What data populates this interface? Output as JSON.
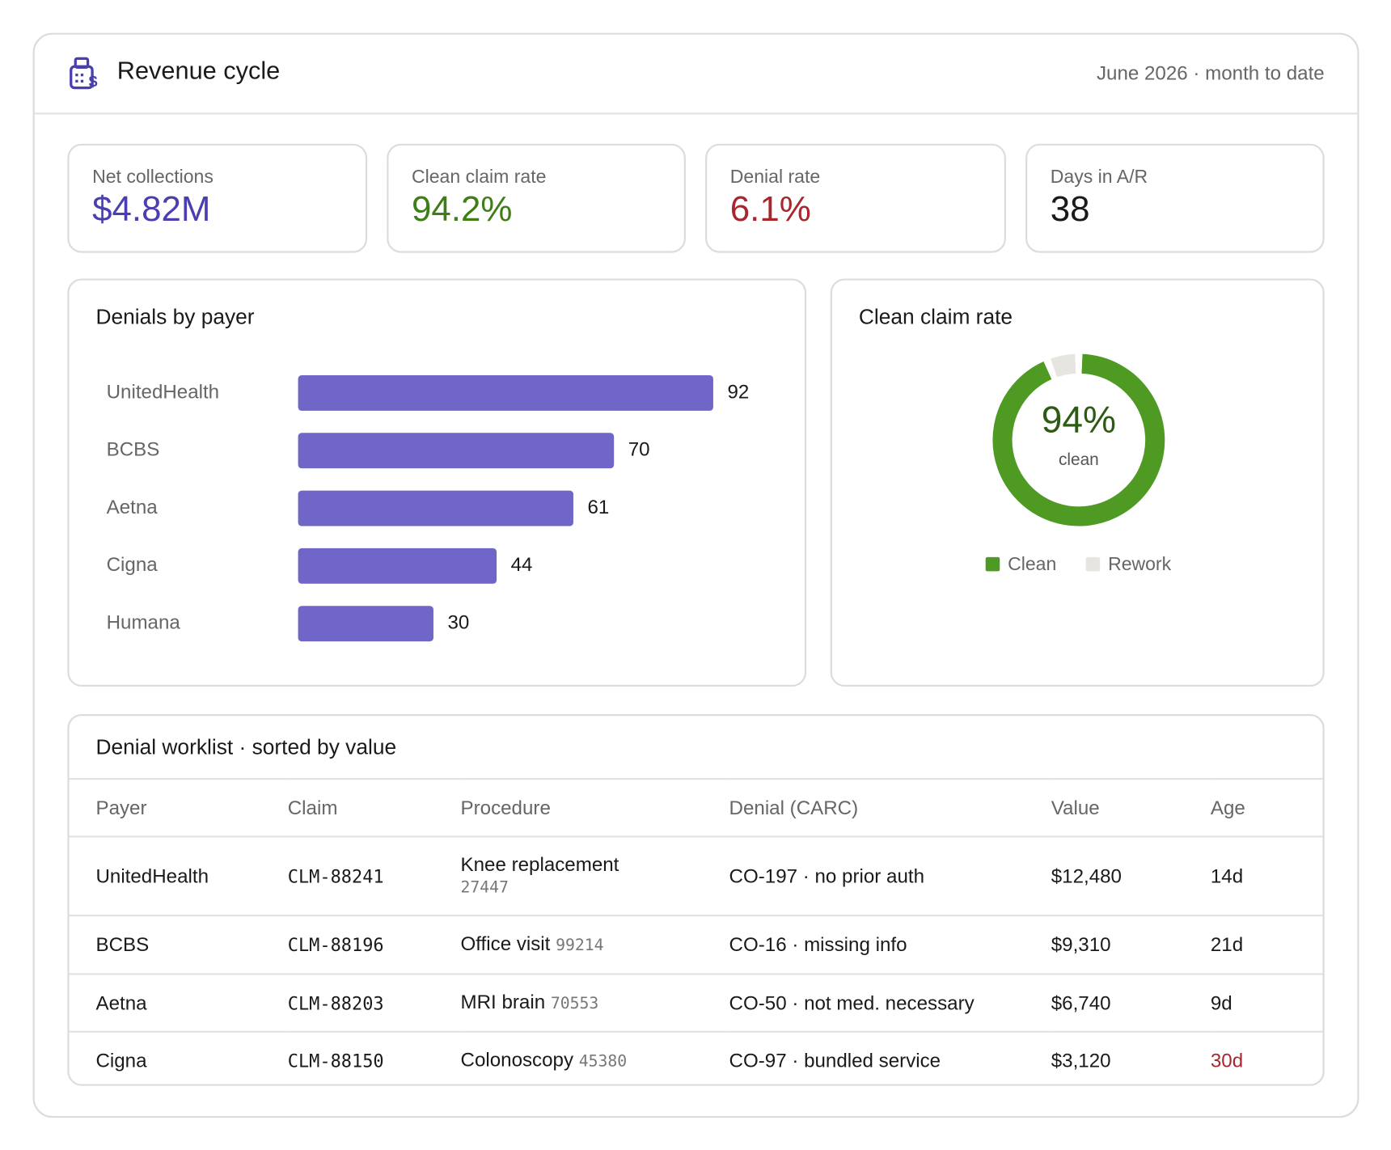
{
  "header": {
    "title": "Revenue cycle",
    "period": "June 2026 · month to date"
  },
  "kpis": [
    {
      "label": "Net collections",
      "value": "$4.82M",
      "color": "#4a3fb0"
    },
    {
      "label": "Clean claim rate",
      "value": "94.2%",
      "color": "#3f7d16"
    },
    {
      "label": "Denial rate",
      "value": "6.1%",
      "color": "#a8262e"
    },
    {
      "label": "Days in A/R",
      "value": "38",
      "color": "#1a1a1a"
    }
  ],
  "chart_data": [
    {
      "type": "bar",
      "orientation": "horizontal",
      "title": "Denials by payer",
      "categories": [
        "UnitedHealth",
        "BCBS",
        "Aetna",
        "Cigna",
        "Humana"
      ],
      "values": [
        92,
        70,
        61,
        44,
        30
      ],
      "color": "#6f66c8"
    },
    {
      "type": "donut",
      "title": "Clean claim rate",
      "center_label": "94%",
      "center_sublabel": "clean",
      "categories": [
        "Clean",
        "Rework"
      ],
      "values": [
        94,
        6
      ],
      "colors": [
        "#4e9a22",
        "#e6e5df"
      ]
    }
  ],
  "worklist": {
    "title": "Denial worklist · sorted by value",
    "columns": [
      "Payer",
      "Claim",
      "Procedure",
      "Denial (CARC)",
      "Value",
      "Age"
    ],
    "rows": [
      [
        "UnitedHealth",
        "CLM-88241",
        {
          "name": "Knee replacement",
          "code": "27447"
        },
        "CO-197 · no prior auth",
        "$12,480",
        "14d"
      ],
      [
        "BCBS",
        "CLM-88196",
        {
          "name": "Office visit",
          "code": "99214"
        },
        "CO-16 · missing info",
        "$9,310",
        "21d"
      ],
      [
        "Aetna",
        "CLM-88203",
        {
          "name": "MRI brain",
          "code": "70553"
        },
        "CO-50 · not med. necessary",
        "$6,740",
        "9d"
      ],
      [
        "Cigna",
        "CLM-88150",
        {
          "name": "Colonoscopy",
          "code": "45380"
        },
        "CO-97 · bundled service",
        "$3,120",
        "30d"
      ]
    ]
  }
}
